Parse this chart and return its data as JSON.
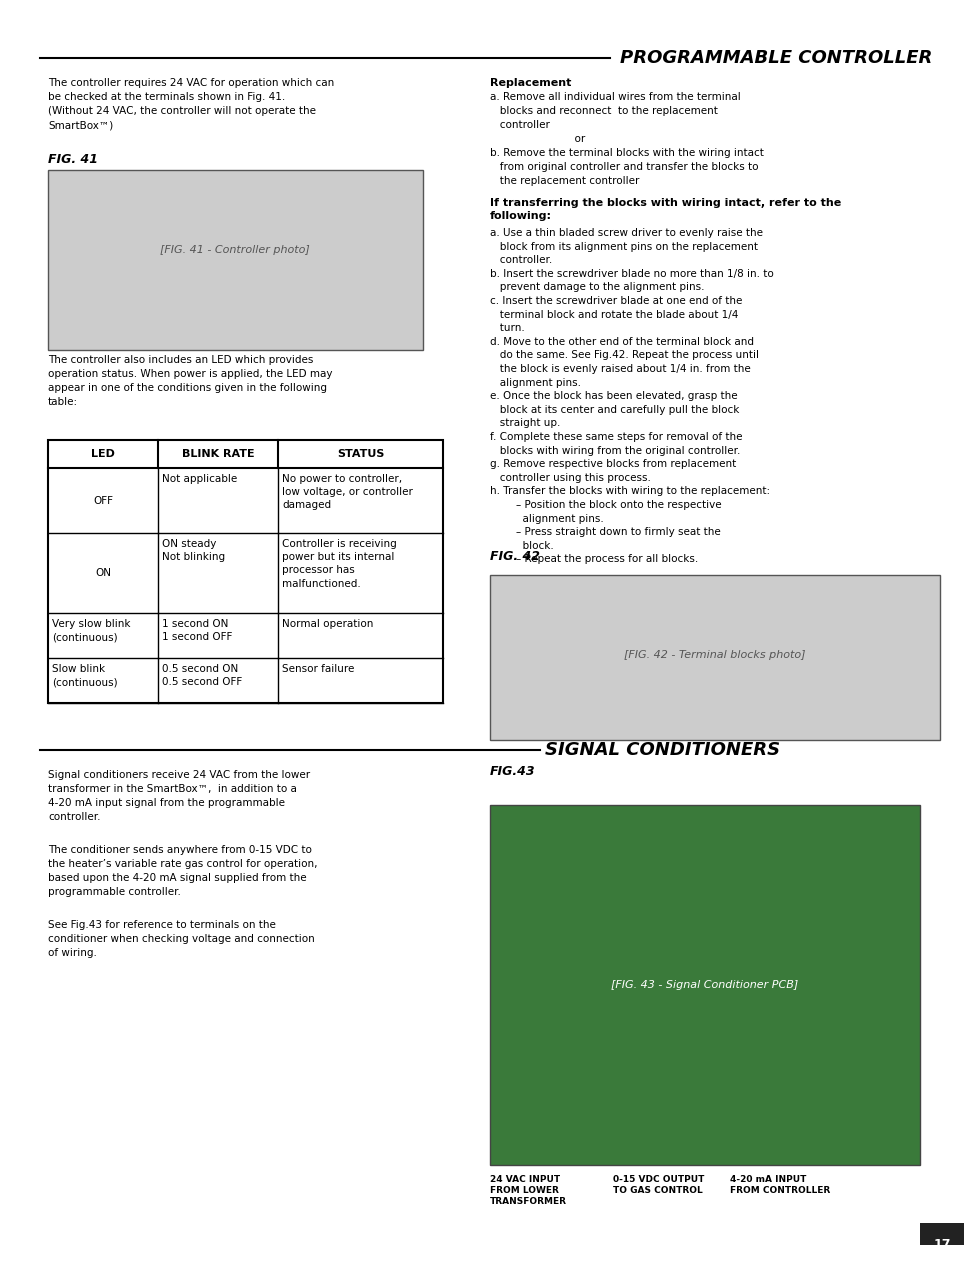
{
  "page_num": "17",
  "bg_color": "#ffffff",
  "title1": "PROGRAMMABLE CONTROLLER",
  "title2": "SIGNAL CONDITIONERS",
  "fig41_label": "FIG. 41",
  "fig42_label": "FIG. 42",
  "fig43_label": "FIG.43",
  "left_col_text1": "The controller requires 24 VAC for operation which can\nbe checked at the terminals shown in Fig. 41.\n(Without 24 VAC, the controller will not operate the\nSmartBox™)",
  "left_col_text2": "The controller also includes an LED which provides\noperation status. When power is applied, the LED may\nappear in one of the conditions given in the following\ntable:",
  "table_headers": [
    "LED",
    "BLINK RATE",
    "STATUS"
  ],
  "table_rows": [
    [
      "OFF",
      "Not applicable",
      "No power to controller,\nlow voltage, or controller\ndamaged"
    ],
    [
      "ON",
      "ON steady\nNot blinking",
      "Controller is receiving\npower but its internal\nprocessor has\nmalfunctioned."
    ],
    [
      "Very slow blink\n(continuous)",
      "1 second ON\n1 second OFF",
      "Normal operation"
    ],
    [
      "Slow blink\n(continuous)",
      "0.5 second ON\n0.5 second OFF",
      "Sensor failure"
    ]
  ],
  "right_col_replacement_bold": "Replacement",
  "right_col_replacement_text": "a. Remove all individual wires from the terminal\n   blocks and reconnect  to the replacement\n   controller\n                          or\nb. Remove the terminal blocks with the wiring intact\n   from original controller and transfer the blocks to\n   the replacement controller",
  "right_col_transfer_bold": "If transferring the blocks with wiring intact, refer to the\nfollowing:",
  "right_col_transfer_text": "a. Use a thin bladed screw driver to evenly raise the\n   block from its alignment pins on the replacement\n   controller.\nb. Insert the screwdriver blade no more than 1/8 in. to\n   prevent damage to the alignment pins.\nc. Insert the screwdriver blade at one end of the\n   terminal block and rotate the blade about 1/4\n   turn.\nd. Move to the other end of the terminal block and\n   do the same. See Fig.42. Repeat the process until\n   the block is evenly raised about 1/4 in. from the\n   alignment pins.\ne. Once the block has been elevated, grasp the\n   block at its center and carefully pull the block\n   straight up.\nf. Complete these same steps for removal of the\n   blocks with wiring from the original controller.\ng. Remove respective blocks from replacement\n   controller using this process.\nh. Transfer the blocks with wiring to the replacement:\n        – Position the block onto the respective\n          alignment pins.\n        – Press straight down to firmly seat the\n          block.\n        – Repeat the process for all blocks.",
  "signal_cond_text1": "Signal conditioners receive 24 VAC from the lower\ntransformer in the SmartBox™,  in addition to a\n4-20 mA input signal from the programmable\ncontroller.",
  "signal_cond_text2": "The conditioner sends anywhere from 0-15 VDC to\nthe heater’s variable rate gas control for operation,\nbased upon the 4-20 mA signal supplied from the\nprogrammable controller.",
  "signal_cond_text3": "See Fig.43 for reference to terminals on the\nconditioner when checking voltage and connection\nof wiring.",
  "fig43_caption1": "24 VAC INPUT",
  "fig43_caption2": "FROM LOWER",
  "fig43_caption3": "TRANSFORMER",
  "fig43_caption4": "0-15 VDC OUTPUT",
  "fig43_caption5": "TO GAS CONTROL",
  "fig43_caption6": "4-20 mA INPUT",
  "fig43_caption7": "FROM CONTROLLER"
}
